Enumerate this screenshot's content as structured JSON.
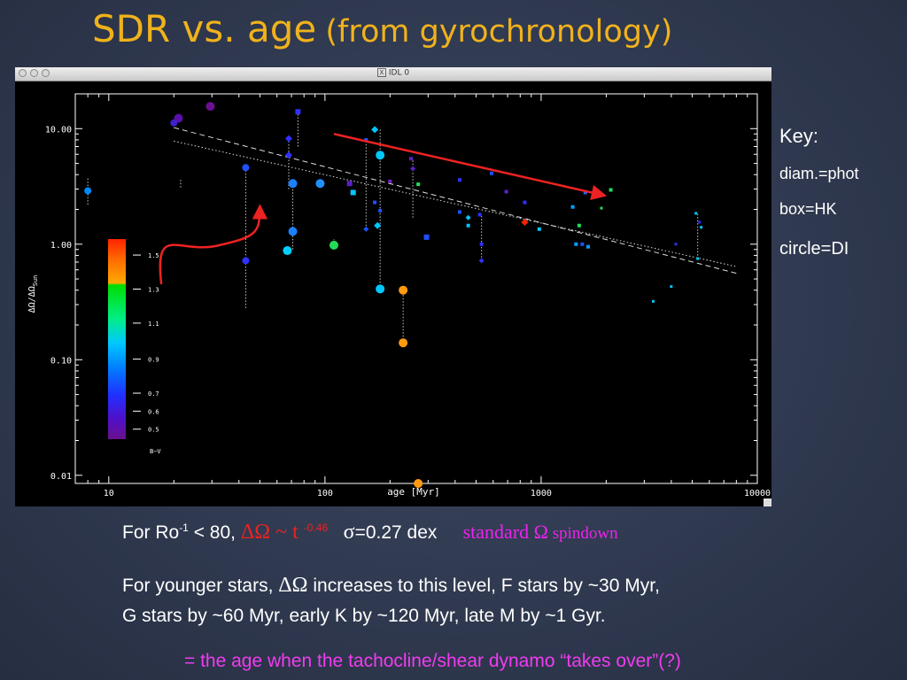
{
  "slide": {
    "title_main": "SDR vs. age",
    "title_sub": "(from gyrochronology)"
  },
  "window": {
    "title": "IDL 0",
    "x11_glyph": "X"
  },
  "key": {
    "title": "Key:",
    "line1": "diam.=phot",
    "line2": "box=HK",
    "line3": "circle=DI"
  },
  "text": {
    "l1_prefix": "For Ro",
    "l1_sup": "-1",
    "l1_mid": " < 80, ",
    "l1_dO": "ΔΩ",
    "l1_tilde": " ~ t ",
    "l1_exp": "-0.46",
    "l1_sigma": "σ",
    "l1_sigma_rest": "=0.27 dex",
    "l1_std": "standard Ω",
    "l1_spindown": " spindown",
    "l2_a": "For younger stars, ",
    "l2_dO": "ΔΩ",
    "l2_b": " increases to this level, F stars by ~30 Myr,",
    "l3": "G stars by ~60 Myr, early K by ~120 Myr, late M by ~1 Gyr.",
    "l4": "= the age when the tachocline/shear dynamo “takes over”(?)"
  },
  "chart_data": {
    "type": "scatter",
    "xlabel": "age  [Myr]",
    "ylabel": "ΔΩ/ΔΩ",
    "ylabel_sub": "Sun",
    "xscale": "log",
    "yscale": "log",
    "xlim": [
      7,
      10000
    ],
    "ylim": [
      0.0085,
      20
    ],
    "x_ticks": [
      10,
      100,
      1000,
      10000
    ],
    "x_tick_labels": [
      "10",
      "100",
      "1000",
      "10000"
    ],
    "y_ticks": [
      0.01,
      0.1,
      1,
      10
    ],
    "y_tick_labels": [
      "0.01",
      "0.10",
      "1.00",
      "10.00"
    ],
    "colorbar": {
      "title": "B−V",
      "labels": [
        "1.5",
        "1.3",
        "1.1",
        "0.9",
        "0.7",
        "0.6",
        "0.5"
      ],
      "values": [
        1.5,
        1.3,
        1.1,
        0.9,
        0.7,
        0.6,
        0.5
      ],
      "colors": [
        "#ff2200",
        "#ff6a00",
        "#ffaa00",
        "#00dd00",
        "#00ee88",
        "#00c8ff",
        "#0080ff",
        "#2030ff",
        "#5010c8",
        "#6a108c"
      ]
    },
    "lines": [
      {
        "style": "dashed",
        "x": [
          20,
          8000
        ],
        "y": [
          10.2,
          0.56
        ]
      },
      {
        "style": "dotted",
        "x": [
          20,
          8000
        ],
        "y": [
          7.8,
          0.64
        ]
      }
    ],
    "arrows": [
      {
        "kind": "curved",
        "color": "#ee2222",
        "from": [
          17.5,
          0.45
        ],
        "to": [
          50,
          2.1
        ]
      },
      {
        "kind": "straight",
        "color": "#ee2222",
        "from": [
          110,
          9.0
        ],
        "to": [
          1950,
          2.65
        ]
      }
    ],
    "stars": [
      {
        "x": 8.0,
        "y": 2.9,
        "shape": "circle",
        "color": "#0088ff",
        "r": 4
      },
      {
        "x": 21.0,
        "y": 12.3,
        "shape": "circle",
        "color": "#5a10aa",
        "r": 5
      },
      {
        "x": 20.0,
        "y": 11.2,
        "shape": "circle",
        "color": "#4020cc",
        "r": 4
      },
      {
        "x": 29.5,
        "y": 15.6,
        "shape": "circle",
        "color": "#6a1090",
        "r": 5
      },
      {
        "x": 43.0,
        "y": 4.6,
        "shape": "circle",
        "color": "#2050ff",
        "r": 4
      },
      {
        "x": 43.0,
        "y": 0.72,
        "shape": "circle",
        "color": "#3030ff",
        "r": 4
      },
      {
        "x": 67.0,
        "y": 0.88,
        "shape": "circle",
        "color": "#00d0ff",
        "r": 5
      },
      {
        "x": 71.0,
        "y": 3.35,
        "shape": "circle",
        "color": "#1a80ff",
        "r": 5
      },
      {
        "x": 71.0,
        "y": 1.29,
        "shape": "circle",
        "color": "#1a80ff",
        "r": 5
      },
      {
        "x": 95.0,
        "y": 3.35,
        "shape": "circle",
        "color": "#2090ff",
        "r": 5
      },
      {
        "x": 110.0,
        "y": 0.98,
        "shape": "circle",
        "color": "#22dd55",
        "r": 5
      },
      {
        "x": 180.0,
        "y": 5.9,
        "shape": "circle",
        "color": "#00c8ff",
        "r": 5
      },
      {
        "x": 180.0,
        "y": 0.41,
        "shape": "circle",
        "color": "#00c8ff",
        "r": 5
      },
      {
        "x": 230.0,
        "y": 0.4,
        "shape": "circle",
        "color": "#ff9a10",
        "r": 5
      },
      {
        "x": 230.0,
        "y": 0.14,
        "shape": "circle",
        "color": "#ff9a10",
        "r": 5
      },
      {
        "x": 270.0,
        "y": 0.0085,
        "shape": "circle",
        "color": "#ff9a10",
        "r": 5
      },
      {
        "x": 68.0,
        "y": 8.2,
        "shape": "diamond",
        "color": "#3030ff",
        "s": 4
      },
      {
        "x": 68.0,
        "y": 5.9,
        "shape": "diamond",
        "color": "#3030ff",
        "s": 4
      },
      {
        "x": 75.0,
        "y": 14.0,
        "shape": "square",
        "color": "#3030ff",
        "s": 3
      },
      {
        "x": 170.0,
        "y": 9.8,
        "shape": "diamond",
        "color": "#00c8ff",
        "s": 4
      },
      {
        "x": 175.0,
        "y": 1.45,
        "shape": "diamond",
        "color": "#00c8ff",
        "s": 4
      },
      {
        "x": 155.0,
        "y": 1.35,
        "shape": "diamond",
        "color": "#2050ff",
        "s": 3
      },
      {
        "x": 155.0,
        "y": 8.0,
        "shape": "square",
        "color": "#2050ff",
        "s": 2
      },
      {
        "x": 170.0,
        "y": 2.3,
        "shape": "square",
        "color": "#2050ff",
        "s": 2
      },
      {
        "x": 180.0,
        "y": 1.95,
        "shape": "square",
        "color": "#2050ff",
        "s": 2
      },
      {
        "x": 130.0,
        "y": 3.35,
        "shape": "square",
        "color": "#5a20c8",
        "s": 3
      },
      {
        "x": 135.0,
        "y": 2.8,
        "shape": "square",
        "color": "#00c8ff",
        "s": 3
      },
      {
        "x": 200.0,
        "y": 3.5,
        "shape": "square",
        "color": "#7a20c8",
        "s": 2
      },
      {
        "x": 250.0,
        "y": 5.5,
        "shape": "square",
        "color": "#5a20c8",
        "s": 2
      },
      {
        "x": 255.0,
        "y": 4.5,
        "shape": "diamond",
        "color": "#5a20c8",
        "s": 3
      },
      {
        "x": 270.0,
        "y": 3.3,
        "shape": "square",
        "color": "#22dd55",
        "s": 2
      },
      {
        "x": 295.0,
        "y": 1.15,
        "shape": "square",
        "color": "#2050ff",
        "s": 3
      },
      {
        "x": 420.0,
        "y": 3.6,
        "shape": "square",
        "color": "#3030ff",
        "s": 2
      },
      {
        "x": 420.0,
        "y": 1.9,
        "shape": "square",
        "color": "#2050ff",
        "s": 2
      },
      {
        "x": 460.0,
        "y": 1.7,
        "shape": "diamond",
        "color": "#00c8ff",
        "s": 3
      },
      {
        "x": 460.0,
        "y": 1.45,
        "shape": "square",
        "color": "#00c8ff",
        "s": 2
      },
      {
        "x": 520.0,
        "y": 1.8,
        "shape": "square",
        "color": "#3030ff",
        "s": 2
      },
      {
        "x": 530.0,
        "y": 1.0,
        "shape": "square",
        "color": "#3030ff",
        "s": 2
      },
      {
        "x": 530.0,
        "y": 0.72,
        "shape": "diamond",
        "color": "#3030ff",
        "s": 3
      },
      {
        "x": 590.0,
        "y": 4.1,
        "shape": "square",
        "color": "#2050ff",
        "s": 2
      },
      {
        "x": 690.0,
        "y": 2.85,
        "shape": "square",
        "color": "#5a20c8",
        "s": 2
      },
      {
        "x": 840.0,
        "y": 2.3,
        "shape": "square",
        "color": "#3030ff",
        "s": 2
      },
      {
        "x": 840.0,
        "y": 1.55,
        "shape": "diamond",
        "color": "#ff2200",
        "s": 4
      },
      {
        "x": 980.0,
        "y": 1.35,
        "shape": "square",
        "color": "#00c8ff",
        "s": 2
      },
      {
        "x": 1400.0,
        "y": 2.1,
        "shape": "square",
        "color": "#00a0ff",
        "s": 2
      },
      {
        "x": 1450.0,
        "y": 1.0,
        "shape": "square",
        "color": "#00a0ff",
        "s": 2
      },
      {
        "x": 1500.0,
        "y": 1.45,
        "shape": "square",
        "color": "#22dd55",
        "s": 2
      },
      {
        "x": 1550.0,
        "y": 1.0,
        "shape": "square",
        "color": "#2050ff",
        "s": 2
      },
      {
        "x": 1600.0,
        "y": 2.8,
        "shape": "square",
        "color": "#3060ff",
        "s": 2
      },
      {
        "x": 1650.0,
        "y": 0.95,
        "shape": "square",
        "color": "#00a0ff",
        "s": 2
      },
      {
        "x": 1900.0,
        "y": 2.05,
        "shape": "square",
        "color": "#22dd55",
        "s": 1.5
      },
      {
        "x": 2100.0,
        "y": 2.95,
        "shape": "square",
        "color": "#22dd55",
        "s": 2
      },
      {
        "x": 3300.0,
        "y": 0.32,
        "shape": "square",
        "color": "#00c8ff",
        "s": 1.5
      },
      {
        "x": 4000.0,
        "y": 0.43,
        "shape": "square",
        "color": "#00c8ff",
        "s": 1.5
      },
      {
        "x": 4200.0,
        "y": 1.0,
        "shape": "square",
        "color": "#3030ff",
        "s": 1.5
      },
      {
        "x": 5200.0,
        "y": 1.85,
        "shape": "square",
        "color": "#00c8ff",
        "s": 1.5
      },
      {
        "x": 5300.0,
        "y": 0.75,
        "shape": "square",
        "color": "#00c8ff",
        "s": 1.5
      },
      {
        "x": 5400.0,
        "y": 1.55,
        "shape": "square",
        "color": "#3030ff",
        "s": 1.5
      },
      {
        "x": 5500.0,
        "y": 1.4,
        "shape": "square",
        "color": "#00c8ff",
        "s": 1.5
      }
    ],
    "errorbars": [
      {
        "x": 8.0,
        "y1": 2.2,
        "y2": 3.8
      },
      {
        "x": 21.5,
        "y1": 3.1,
        "y2": 3.7
      },
      {
        "x": 43.0,
        "y1": 0.28,
        "y2": 4.6
      },
      {
        "x": 68.0,
        "y1": 3.0,
        "y2": 8.2
      },
      {
        "x": 71.0,
        "y1": 0.9,
        "y2": 3.35
      },
      {
        "x": 75.0,
        "y1": 7.0,
        "y2": 14.0
      },
      {
        "x": 110.0,
        "y1": 0.9,
        "y2": 1.1
      },
      {
        "x": 155.0,
        "y1": 1.35,
        "y2": 8.0
      },
      {
        "x": 180.0,
        "y1": 0.41,
        "y2": 9.8
      },
      {
        "x": 230.0,
        "y1": 0.14,
        "y2": 0.4
      },
      {
        "x": 255.0,
        "y1": 1.7,
        "y2": 5.5
      },
      {
        "x": 530.0,
        "y1": 0.72,
        "y2": 1.8
      },
      {
        "x": 5300.0,
        "y1": 0.75,
        "y2": 1.85
      }
    ]
  }
}
